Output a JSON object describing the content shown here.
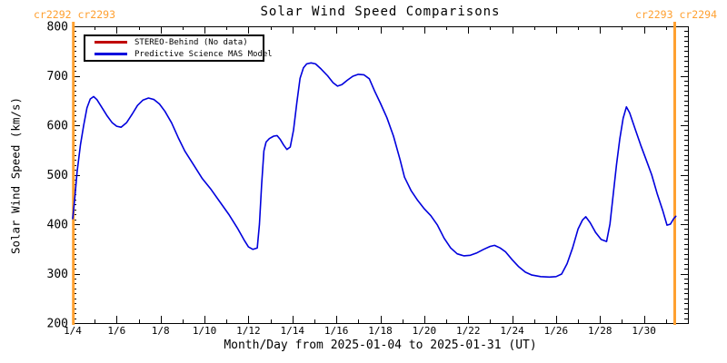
{
  "title": "Solar Wind Speed Comparisons",
  "annotations": {
    "top_left": "cr2292 cr2293",
    "top_right": "cr2293 cr2294",
    "color": "#FFA030"
  },
  "legend": [
    {
      "label": "STEREO-Behind (No data)",
      "color": "#C00000"
    },
    {
      "label": "Predictive Science MAS Model",
      "color": "#0000DD"
    }
  ],
  "axes": {
    "x_label": "Month/Day from 2025-01-04 to 2025-01-31 (UT)",
    "y_label": "Solar Wind Speed (km/s)"
  },
  "chart_data": {
    "type": "line",
    "title": "Solar Wind Speed Comparisons",
    "xlabel": "Month/Day from 2025-01-04 to 2025-01-31 (UT)",
    "ylabel": "Solar Wind Speed (km/s)",
    "x_unit": "day of January 2025 (UT)",
    "xlim": [
      4,
      32
    ],
    "ylim": [
      200,
      800
    ],
    "grid": false,
    "legend_position": "top-left",
    "x_major_ticks": [
      4,
      6,
      8,
      10,
      12,
      14,
      16,
      18,
      20,
      22,
      24,
      26,
      28,
      30
    ],
    "x_tick_labels": [
      "1/4",
      "1/6",
      "1/8",
      "1/10",
      "1/12",
      "1/14",
      "1/16",
      "1/18",
      "1/20",
      "1/22",
      "1/24",
      "1/26",
      "1/28",
      "1/30"
    ],
    "x_minor_step": 1,
    "y_major_ticks": [
      200,
      300,
      400,
      500,
      600,
      700,
      800
    ],
    "y_minor_step": 10,
    "carrington_boundaries": {
      "color": "#FFA030",
      "lines_x": [
        4.03,
        31.4
      ],
      "labels": [
        "cr2292 cr2293",
        "cr2293 cr2294"
      ]
    },
    "series": [
      {
        "name": "STEREO-Behind (No data)",
        "color": "#C00000",
        "x": [],
        "values": []
      },
      {
        "name": "Predictive Science MAS Model",
        "color": "#0000DD",
        "x": [
          4.0,
          4.1,
          4.2,
          4.35,
          4.5,
          4.65,
          4.8,
          4.95,
          5.1,
          5.3,
          5.55,
          5.8,
          6.0,
          6.2,
          6.45,
          6.7,
          6.95,
          7.2,
          7.45,
          7.7,
          7.95,
          8.2,
          8.5,
          8.8,
          9.1,
          9.5,
          9.9,
          10.3,
          10.7,
          11.1,
          11.5,
          11.8,
          12.0,
          12.2,
          12.4,
          12.5,
          12.6,
          12.7,
          12.8,
          12.95,
          13.15,
          13.3,
          13.45,
          13.6,
          13.75,
          13.9,
          14.05,
          14.2,
          14.35,
          14.5,
          14.65,
          14.85,
          15.05,
          15.3,
          15.6,
          15.85,
          16.05,
          16.25,
          16.5,
          16.75,
          17.0,
          17.25,
          17.5,
          17.75,
          18.0,
          18.3,
          18.6,
          18.9,
          19.1,
          19.4,
          19.7,
          20.0,
          20.3,
          20.6,
          20.9,
          21.2,
          21.5,
          21.8,
          22.1,
          22.4,
          22.7,
          23.0,
          23.2,
          23.45,
          23.7,
          24.0,
          24.3,
          24.6,
          24.9,
          25.3,
          25.7,
          26.0,
          26.25,
          26.5,
          26.75,
          27.0,
          27.2,
          27.35,
          27.55,
          27.8,
          28.05,
          28.3,
          28.45,
          28.6,
          28.75,
          28.9,
          29.05,
          29.2,
          29.35,
          29.6,
          29.85,
          30.1,
          30.35,
          30.6,
          30.85,
          31.05,
          31.2,
          31.35,
          31.45
        ],
        "values": [
          411,
          455,
          505,
          560,
          600,
          635,
          653,
          658,
          652,
          638,
          620,
          605,
          598,
          596,
          605,
          622,
          640,
          651,
          655,
          652,
          643,
          628,
          605,
          575,
          548,
          520,
          492,
          470,
          445,
          420,
          392,
          368,
          354,
          349,
          352,
          400,
          480,
          548,
          566,
          573,
          578,
          579,
          571,
          560,
          551,
          556,
          590,
          645,
          695,
          716,
          724,
          726,
          724,
          714,
          700,
          686,
          679,
          682,
          691,
          699,
          703,
          702,
          694,
          668,
          645,
          615,
          578,
          530,
          495,
          468,
          448,
          431,
          417,
          398,
          372,
          352,
          340,
          336,
          337,
          342,
          349,
          355,
          357,
          352,
          344,
          328,
          314,
          303,
          297,
          294,
          293,
          294,
          299,
          320,
          352,
          390,
          408,
          415,
          403,
          383,
          369,
          365,
          400,
          460,
          520,
          572,
          614,
          637,
          625,
          592,
          560,
          530,
          500,
          462,
          428,
          398,
          400,
          411,
          416
        ]
      }
    ]
  }
}
